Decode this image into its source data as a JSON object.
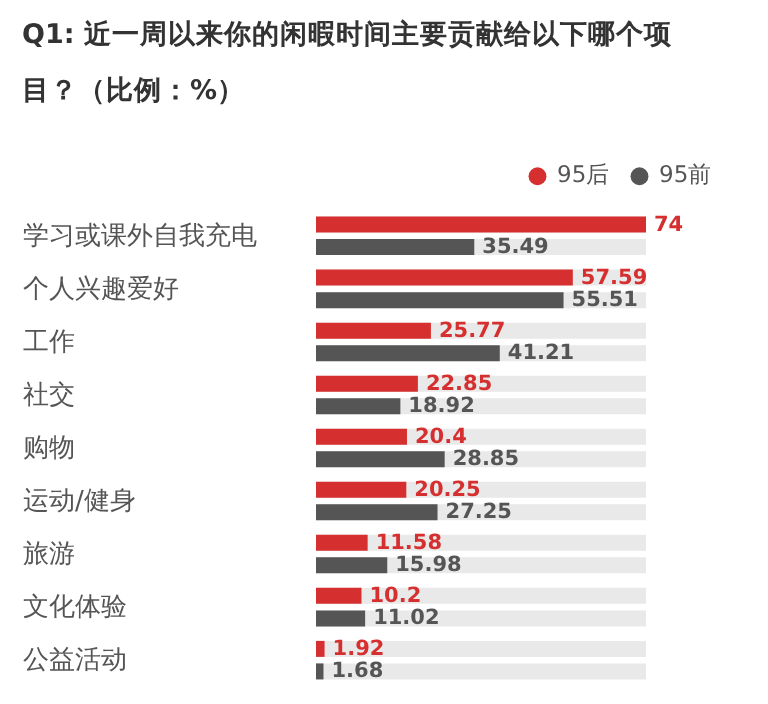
{
  "chart_data": {
    "type": "bar",
    "orientation": "horizontal",
    "title": "Q1: 近一周以来你的闲暇时间主要贡献给以下哪个项目？（比例：%）",
    "categories": [
      "学习或课外自我充电",
      "个人兴趣爱好",
      "工作",
      "社交",
      "购物",
      "运动/健身",
      "旅游",
      "文化体验",
      "公益活动"
    ],
    "series": [
      {
        "name": "95后",
        "color": "#d62f2f",
        "values": [
          74,
          57.59,
          25.77,
          22.85,
          20.4,
          20.25,
          11.58,
          10.2,
          1.92
        ],
        "value_labels": [
          "74",
          "57.59",
          "25.77",
          "22.85",
          "20.4",
          "20.25",
          "11.58",
          "10.2",
          "1.92"
        ]
      },
      {
        "name": "95前",
        "color": "#555555",
        "values": [
          35.49,
          55.51,
          41.21,
          18.92,
          28.85,
          27.25,
          15.98,
          11.02,
          1.68
        ],
        "value_labels": [
          "35.49",
          "55.51",
          "41.21",
          "18.92",
          "28.85",
          "27.25",
          "15.98",
          "11.02",
          "1.68"
        ]
      }
    ],
    "legend": "top right"
  }
}
